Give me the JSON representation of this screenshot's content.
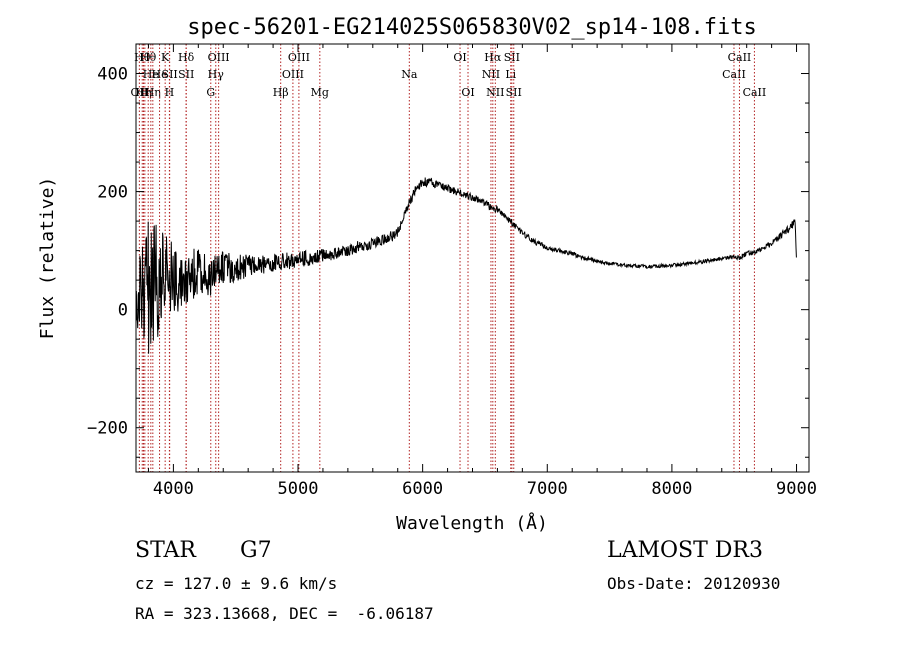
{
  "chart_data": {
    "type": "line",
    "title": "spec-56201-EG214025S065830V02_sp14-108.fits",
    "xlabel": "Wavelength (Å)",
    "ylabel": "Flux (relative)",
    "xlim": [
      3700,
      9100
    ],
    "ylim": [
      -275,
      450
    ],
    "xticks": [
      4000,
      5000,
      6000,
      7000,
      8000,
      9000
    ],
    "xtick_labels": [
      "4000",
      "5000",
      "6000",
      "7000",
      "8000",
      "9000"
    ],
    "yticks": [
      -200,
      0,
      200,
      400
    ],
    "ytick_labels": [
      "−200",
      "0",
      "200",
      "400"
    ],
    "grid": false,
    "series": [
      {
        "name": "flux",
        "x": [
          3700,
          3750,
          3800,
          3850,
          3900,
          3950,
          4000,
          4050,
          4100,
          4150,
          4200,
          4250,
          4300,
          4350,
          4400,
          4500,
          4600,
          4700,
          4800,
          4900,
          5000,
          5100,
          5200,
          5300,
          5400,
          5500,
          5600,
          5700,
          5800,
          5850,
          5900,
          5950,
          6000,
          6050,
          6100,
          6150,
          6200,
          6300,
          6400,
          6500,
          6563,
          6600,
          6700,
          6800,
          6900,
          7000,
          7100,
          7200,
          7300,
          7400,
          7500,
          7600,
          7700,
          7800,
          7900,
          8000,
          8100,
          8200,
          8300,
          8400,
          8500,
          8542,
          8600,
          8700,
          8800,
          8900,
          8990,
          9000
        ],
        "y": [
          20,
          30,
          40,
          40,
          45,
          50,
          55,
          50,
          58,
          60,
          62,
          60,
          55,
          65,
          72,
          70,
          75,
          78,
          80,
          82,
          85,
          88,
          92,
          95,
          100,
          108,
          112,
          120,
          130,
          160,
          185,
          205,
          215,
          218,
          212,
          210,
          205,
          198,
          190,
          182,
          170,
          170,
          150,
          130,
          115,
          105,
          100,
          95,
          88,
          82,
          78,
          76,
          74,
          73,
          74,
          75,
          77,
          80,
          83,
          86,
          90,
          88,
          95,
          100,
          112,
          130,
          148,
          80
        ],
        "noise": [
          55,
          85,
          120,
          110,
          90,
          75,
          60,
          55,
          50,
          45,
          40,
          38,
          35,
          32,
          28,
          24,
          20,
          18,
          16,
          15,
          14,
          13,
          12,
          11,
          10,
          10,
          10,
          9,
          9,
          9,
          9,
          8,
          8,
          8,
          7,
          7,
          7,
          6,
          6,
          6,
          6,
          6,
          5,
          5,
          5,
          4,
          4,
          4,
          4,
          3,
          3,
          3,
          3,
          3,
          3,
          3,
          3,
          3,
          3,
          3,
          4,
          4,
          4,
          4,
          5,
          6,
          7,
          5
        ]
      }
    ],
    "spectral_lines": [
      {
        "wl": 3727,
        "label": "OII",
        "row": 2
      },
      {
        "wl": 3750,
        "label": "Hθ",
        "row": 0
      },
      {
        "wl": 3760,
        "label": "Hη",
        "row": 2
      },
      {
        "wl": 3771,
        "label": "H",
        "row": 2
      },
      {
        "wl": 3798,
        "label": "Hθ",
        "row": 0
      },
      {
        "wl": 3819,
        "label": "He",
        "row": 1
      },
      {
        "wl": 3835,
        "label": "Hη",
        "row": 2
      },
      {
        "wl": 3889,
        "label": "He",
        "row": 1
      },
      {
        "wl": 3934,
        "label": "K",
        "row": 0
      },
      {
        "wl": 3968,
        "label": "H",
        "row": 2
      },
      {
        "wl": 3970,
        "label": "SII",
        "row": 1
      },
      {
        "wl": 4102,
        "label": "Hδ",
        "row": 0
      },
      {
        "wl": 4103,
        "label": "SII",
        "row": 1
      },
      {
        "wl": 4300,
        "label": "G",
        "row": 2
      },
      {
        "wl": 4340,
        "label": "Hγ",
        "row": 1
      },
      {
        "wl": 4363,
        "label": "OIII",
        "row": 0
      },
      {
        "wl": 4861,
        "label": "Hβ",
        "row": 2
      },
      {
        "wl": 4959,
        "label": "OIII",
        "row": 1
      },
      {
        "wl": 5007,
        "label": "OIII",
        "row": 0
      },
      {
        "wl": 5175,
        "label": "Mg",
        "row": 2
      },
      {
        "wl": 5893,
        "label": "Na",
        "row": 1
      },
      {
        "wl": 6300,
        "label": "OI",
        "row": 0
      },
      {
        "wl": 6364,
        "label": "OI",
        "row": 2
      },
      {
        "wl": 6548,
        "label": "NII",
        "row": 1
      },
      {
        "wl": 6563,
        "label": "Hα",
        "row": 0
      },
      {
        "wl": 6583,
        "label": "NII",
        "row": 2
      },
      {
        "wl": 6707,
        "label": "Li",
        "row": 1
      },
      {
        "wl": 6716,
        "label": "SII",
        "row": 0
      },
      {
        "wl": 6731,
        "label": "SII",
        "row": 2
      },
      {
        "wl": 8498,
        "label": "CaII",
        "row": 1
      },
      {
        "wl": 8542,
        "label": "CaII",
        "row": 0
      },
      {
        "wl": 8662,
        "label": "CaII",
        "row": 2
      }
    ]
  },
  "info": {
    "object_type": "STAR",
    "subclass": "G7",
    "survey": "LAMOST DR3",
    "cz": "cz = 127.0 ± 9.6 km/s",
    "obs_date": "Obs-Date: 20120930",
    "coords": "RA = 323.13668, DEC =  -6.06187"
  }
}
